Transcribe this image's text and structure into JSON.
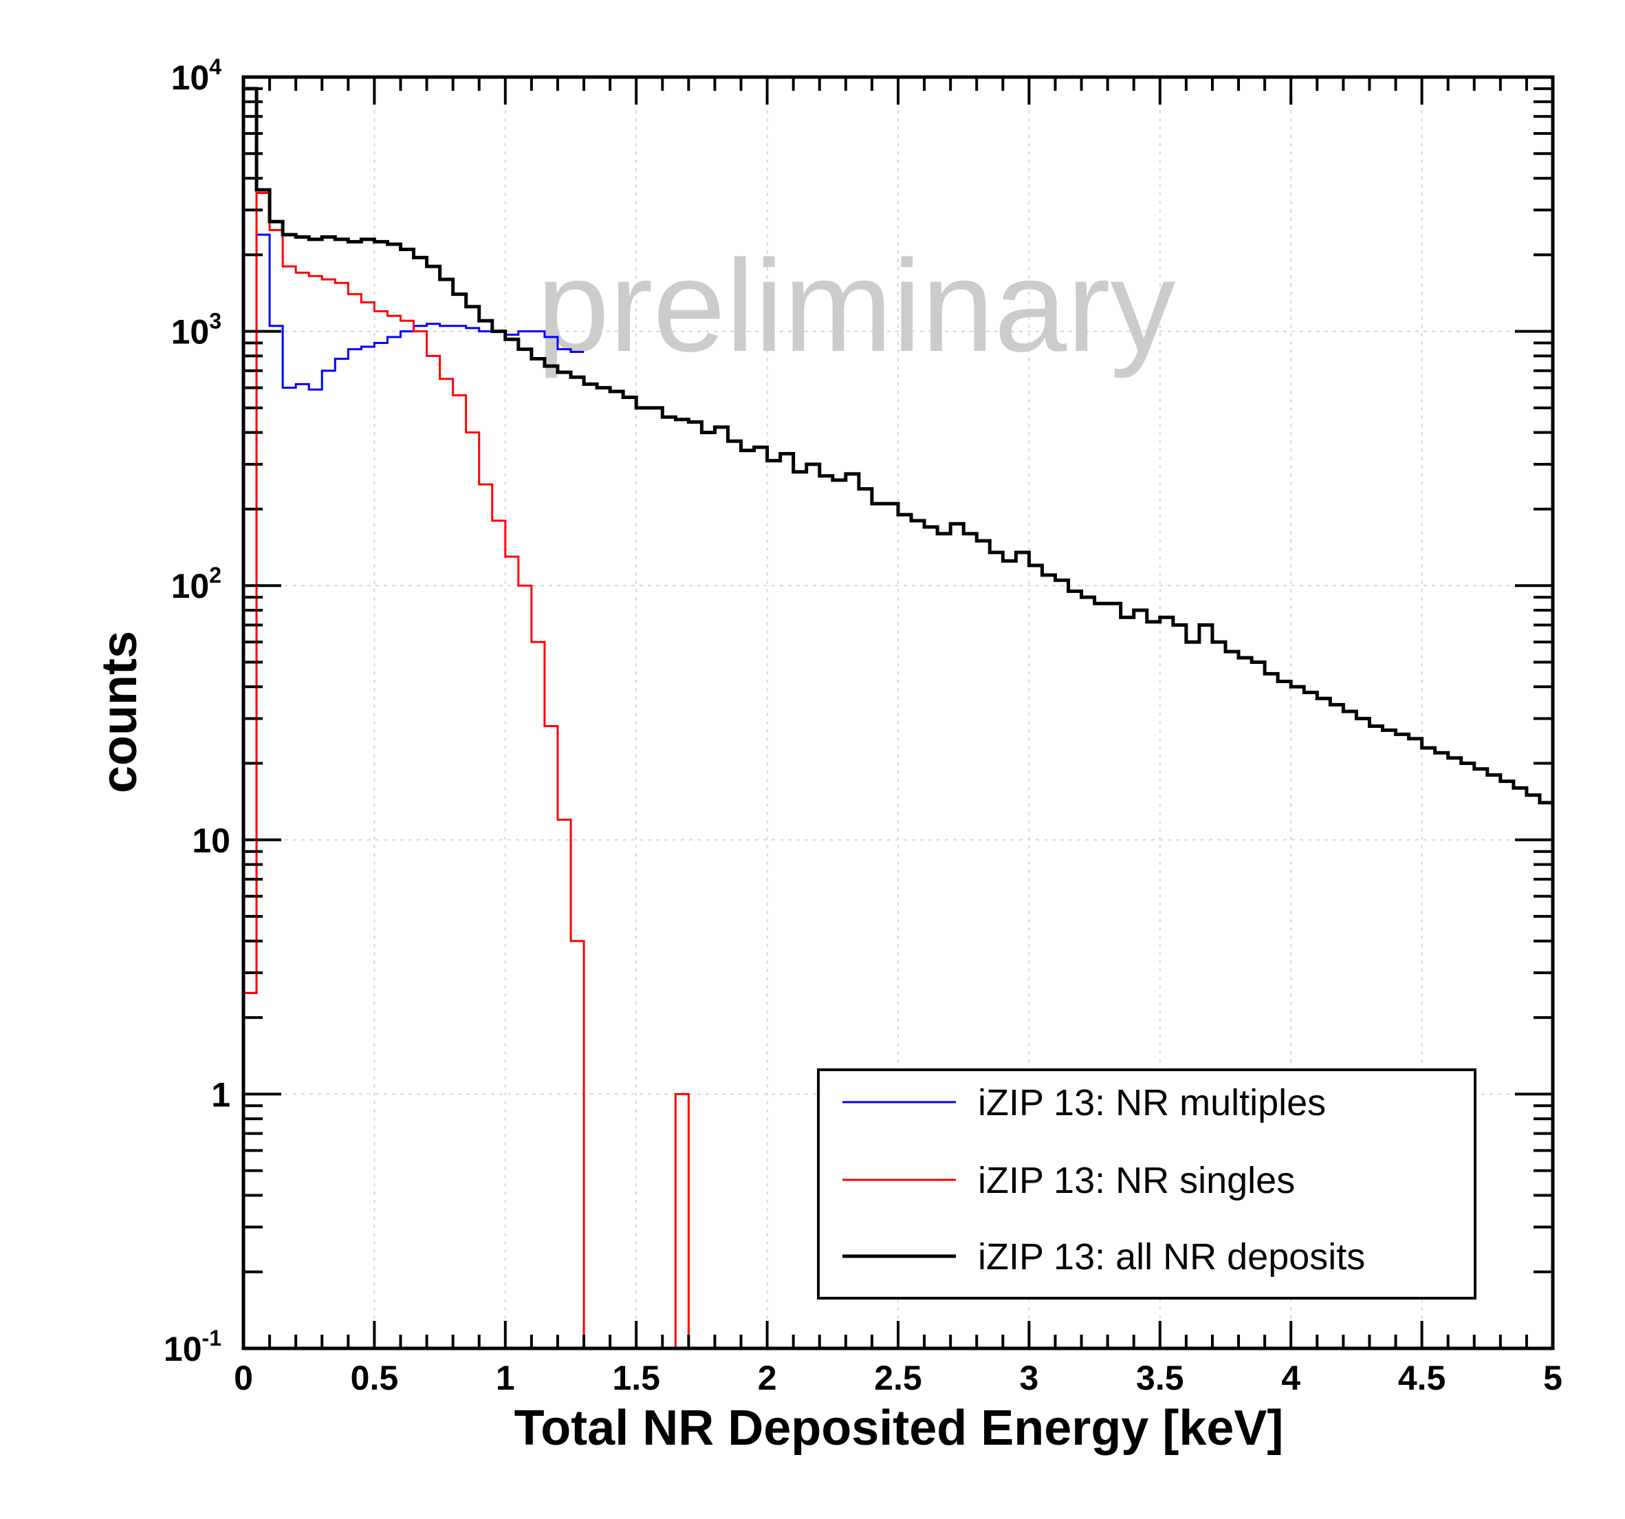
{
  "chart_data": {
    "type": "line",
    "step": true,
    "xlabel": "Total NR Deposited Energy [keV]",
    "ylabel": "counts",
    "xlim": [
      0,
      5
    ],
    "ylim": [
      0.1,
      10000
    ],
    "yscale": "log",
    "grid": true,
    "legend_position": "bottom-right",
    "annotation": "preliminary",
    "x_ticks": [
      "0",
      "0.5",
      "1",
      "1.5",
      "2",
      "2.5",
      "3",
      "3.5",
      "4",
      "4.5",
      "5"
    ],
    "y_ticks": [
      {
        "value": 0.1,
        "base": "10",
        "exp": "-1"
      },
      {
        "value": 1,
        "base": "1",
        "exp": ""
      },
      {
        "value": 10,
        "base": "10",
        "exp": ""
      },
      {
        "value": 100,
        "base": "10",
        "exp": "2"
      },
      {
        "value": 1000,
        "base": "10",
        "exp": "3"
      },
      {
        "value": 10000,
        "base": "10",
        "exp": "4"
      }
    ],
    "bin_width": 0.05,
    "series": [
      {
        "name": "iZIP 13: NR multiples",
        "color": "#0000ff",
        "values": [
          2.5,
          2400,
          1050,
          600,
          620,
          590,
          700,
          780,
          850,
          870,
          900,
          950,
          1000,
          1050,
          1070,
          1050,
          1050,
          1030,
          1000,
          1000,
          970,
          1000,
          1000,
          950,
          850,
          830
        ]
      },
      {
        "name": "iZIP 13: NR singles",
        "color": "#ff0000",
        "values": [
          2.5,
          3500,
          2500,
          1800,
          1700,
          1650,
          1600,
          1550,
          1400,
          1300,
          1200,
          1150,
          1100,
          1000,
          800,
          650,
          560,
          400,
          250,
          180,
          130,
          100,
          60,
          28,
          12,
          4,
          0,
          0,
          0,
          0,
          0,
          0,
          0,
          1,
          0,
          0,
          0,
          0,
          0,
          0,
          0,
          0,
          0,
          0,
          0,
          0,
          0,
          0,
          0,
          0,
          0,
          0,
          0,
          0,
          0,
          0,
          0,
          0,
          0,
          0,
          0,
          0,
          0,
          0,
          0,
          0,
          0,
          0,
          0,
          0,
          0,
          0,
          0,
          0,
          0,
          0,
          0,
          0,
          0,
          0,
          0,
          0,
          0,
          0,
          0,
          0,
          0,
          0,
          0,
          0,
          0,
          0,
          0,
          0,
          0,
          0,
          0,
          0,
          0,
          0
        ]
      },
      {
        "name": "iZIP 13: all NR deposits",
        "color": "#000000",
        "values": [
          9000,
          3600,
          2700,
          2400,
          2350,
          2300,
          2350,
          2300,
          2250,
          2300,
          2250,
          2200,
          2100,
          1950,
          1800,
          1600,
          1400,
          1250,
          1100,
          1000,
          930,
          850,
          780,
          730,
          690,
          660,
          620,
          600,
          580,
          550,
          500,
          500,
          460,
          450,
          440,
          400,
          420,
          370,
          340,
          350,
          310,
          330,
          280,
          300,
          270,
          260,
          275,
          240,
          210,
          210,
          190,
          180,
          170,
          160,
          175,
          160,
          150,
          135,
          125,
          135,
          120,
          110,
          105,
          95,
          90,
          85,
          85,
          75,
          80,
          72,
          75,
          70,
          60,
          70,
          60,
          55,
          52,
          50,
          45,
          42,
          40,
          38,
          36,
          34,
          32,
          30,
          28,
          27,
          26,
          25,
          23,
          22,
          21,
          20,
          19,
          18,
          17,
          16,
          15,
          14
        ]
      }
    ]
  }
}
